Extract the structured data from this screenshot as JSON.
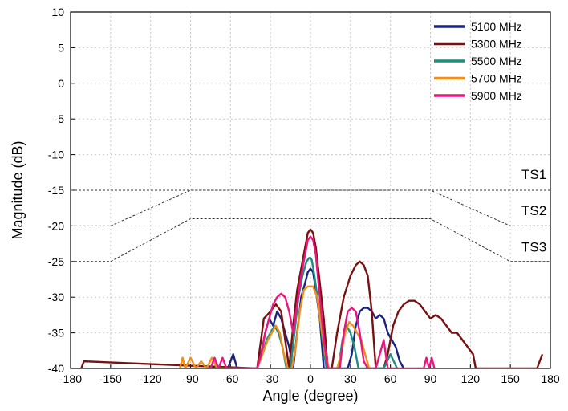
{
  "chart_data": {
    "type": "line",
    "title": "",
    "xlabel": "Angle (degree)",
    "ylabel": "Magnitude (dB)",
    "xlim": [
      -180,
      180
    ],
    "ylim": [
      -40,
      10
    ],
    "xticks": [
      "-180",
      "-150",
      "-120",
      "-90",
      "-60",
      "-30",
      "0",
      "30",
      "60",
      "90",
      "120",
      "150",
      "180"
    ],
    "yticks": [
      "10",
      "5",
      "0",
      "-5",
      "-10",
      "-15",
      "-20",
      "-25",
      "-30",
      "-35",
      "-40"
    ],
    "grid": true,
    "legend_position": "top-right",
    "series": [
      {
        "name": "5100 MHz",
        "color": "#1a237e",
        "x": [
          -62,
          -58,
          -55,
          -50,
          -45,
          -40,
          -36,
          -34,
          -31,
          -28,
          -25,
          -22,
          -19,
          -16,
          -13,
          -10,
          -7,
          -4,
          -2,
          0,
          2,
          4,
          7,
          10,
          13,
          16,
          19,
          22,
          25,
          28,
          31,
          34,
          37,
          40,
          43,
          46,
          49,
          52,
          55,
          58,
          61,
          64,
          67,
          70
        ],
        "y": [
          -40,
          -38,
          -40,
          -40,
          -40,
          -40,
          -37,
          -35,
          -33,
          -34,
          -32,
          -33,
          -35,
          -37,
          -40,
          -35,
          -30,
          -28,
          -26.5,
          -26,
          -26.5,
          -29,
          -33,
          -40,
          -40,
          -40,
          -40,
          -40,
          -40,
          -40,
          -38,
          -34,
          -32,
          -31.5,
          -31.5,
          -32,
          -33,
          -32.5,
          -33,
          -35,
          -36,
          -37,
          -39,
          -40
        ]
      },
      {
        "name": "5300 MHz",
        "color": "#7b1010",
        "x": [
          -172,
          -170,
          -40,
          -35,
          -30,
          -26,
          -22,
          -19,
          -16,
          -13,
          -10,
          -7,
          -4,
          -2,
          0,
          2,
          4,
          7,
          10,
          13,
          16,
          20,
          25,
          30,
          34,
          37,
          40,
          43,
          46,
          49,
          52,
          55,
          58,
          62,
          66,
          70,
          74,
          78,
          82,
          86,
          90,
          94,
          98,
          102,
          106,
          110,
          114,
          118,
          122,
          124,
          170,
          174
        ],
        "y": [
          -40,
          -39,
          -40,
          -33,
          -32,
          -31,
          -32,
          -36,
          -40,
          -34,
          -29,
          -26,
          -23,
          -21,
          -20.5,
          -21,
          -23,
          -28,
          -33,
          -40,
          -40,
          -35,
          -30,
          -27,
          -25.5,
          -25,
          -25.5,
          -27,
          -32,
          -40,
          -40,
          -40,
          -38,
          -34,
          -32,
          -31,
          -30.5,
          -30.5,
          -31,
          -32,
          -33,
          -32.5,
          -33,
          -34,
          -35,
          -35,
          -36,
          -37,
          -38,
          -40,
          -40,
          -38
        ]
      },
      {
        "name": "5500 MHz",
        "color": "#1b8e7f",
        "x": [
          -40,
          -36,
          -33,
          -30,
          -27,
          -24,
          -21,
          -18,
          -15,
          -12,
          -9,
          -6,
          -3,
          -1,
          0,
          1,
          3,
          6,
          9,
          12,
          15,
          18,
          21,
          24,
          27,
          30,
          33,
          36,
          40,
          45,
          50,
          55,
          60,
          65
        ],
        "y": [
          -40,
          -38,
          -36,
          -35,
          -34,
          -35,
          -37,
          -40,
          -40,
          -35,
          -30,
          -27,
          -25,
          -24.5,
          -24.5,
          -24.8,
          -27,
          -31,
          -36,
          -40,
          -40,
          -40,
          -40,
          -36,
          -34,
          -35,
          -37,
          -40,
          -40,
          -40,
          -40,
          -40,
          -38,
          -40
        ]
      },
      {
        "name": "5700 MHz",
        "color": "#f0901a",
        "x": [
          -98,
          -96,
          -94,
          -90,
          -86,
          -82,
          -78,
          -74,
          -70,
          -40,
          -36,
          -32,
          -29,
          -26,
          -23,
          -20,
          -17,
          -14,
          -11,
          -8,
          -5,
          -2,
          0,
          2,
          5,
          8,
          11,
          14,
          17,
          20,
          23,
          26,
          29,
          32,
          35,
          38,
          41,
          44
        ],
        "y": [
          -40,
          -38.5,
          -40,
          -38.5,
          -40,
          -39,
          -40,
          -38.5,
          -40,
          -40,
          -38,
          -36,
          -35,
          -34,
          -35,
          -38,
          -40,
          -40,
          -37,
          -32,
          -29,
          -28.5,
          -28.5,
          -28.5,
          -30,
          -34,
          -38,
          -40,
          -40,
          -40,
          -38,
          -35,
          -33.5,
          -34,
          -35,
          -36,
          -38,
          -40
        ]
      },
      {
        "name": "5900 MHz",
        "color": "#e8177f",
        "x": [
          -75,
          -72,
          -69,
          -66,
          -63,
          -40,
          -37,
          -34,
          -31,
          -28,
          -25,
          -22,
          -19,
          -16,
          -13,
          -10,
          -7,
          -4,
          -2,
          0,
          2,
          4,
          7,
          10,
          13,
          16,
          19,
          22,
          25,
          28,
          31,
          34,
          37,
          40,
          43,
          46,
          49,
          52,
          55,
          58,
          85,
          87,
          89,
          91,
          93
        ],
        "y": [
          -40,
          -38.5,
          -40,
          -38.5,
          -40,
          -40,
          -38,
          -35,
          -33,
          -31,
          -30,
          -29.5,
          -30,
          -32,
          -35,
          -31,
          -27,
          -24,
          -22,
          -21.5,
          -22,
          -24,
          -30,
          -36,
          -40,
          -40,
          -40,
          -40,
          -35,
          -32,
          -31.5,
          -32,
          -35,
          -39,
          -40,
          -40,
          -40,
          -38,
          -36,
          -40,
          -40,
          -38.5,
          -40,
          -38.5,
          -40
        ]
      }
    ],
    "masks": [
      {
        "name": "TS1",
        "x": [
          -180,
          -150,
          -90,
          90,
          150,
          180
        ],
        "y": [
          -20,
          -20,
          -15,
          -15,
          -20,
          -20
        ]
      },
      {
        "name": "TS2",
        "x": [
          -180,
          -150,
          -90,
          90,
          150,
          180
        ],
        "y": [
          -25,
          -25,
          -19,
          -19,
          -25,
          -25
        ]
      },
      {
        "name": "TS3",
        "x": [
          -180,
          -90,
          90,
          180
        ],
        "y": [
          -15,
          -15,
          -15,
          -15
        ]
      }
    ],
    "mask_labels": [
      "TS1",
      "TS2",
      "TS3"
    ]
  }
}
